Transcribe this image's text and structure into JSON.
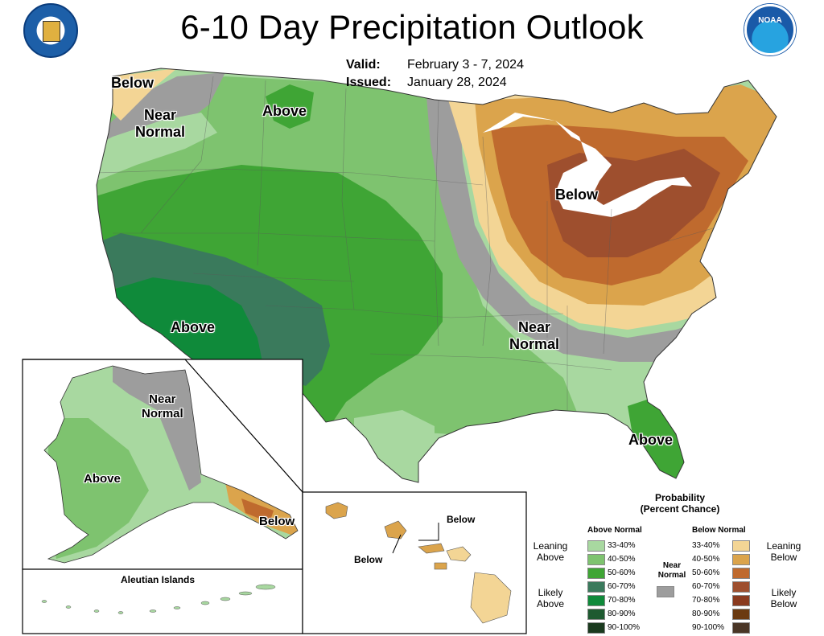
{
  "title": "6-10 Day Precipitation Outlook",
  "valid_label": "Valid:",
  "valid_value": "February 3 - 7, 2024",
  "issued_label": "Issued:",
  "issued_value": "January 28, 2024",
  "logos": {
    "left": "doc-seal-icon",
    "right": "noaa-logo-icon"
  },
  "colors": {
    "above_33_40": "#a8d8a0",
    "above_40_50": "#7ec36f",
    "above_50_60": "#3fa535",
    "above_60_70": "#3a7a5c",
    "above_70_80": "#0f8a3a",
    "above_80_90": "#1e5a30",
    "above_90_100": "#1a3a1e",
    "near_normal": "#9d9d9d",
    "below_33_40": "#f3d595",
    "below_40_50": "#dba44c",
    "below_50_60": "#bf6a2e",
    "below_60_70": "#9e4f2e",
    "below_70_80": "#8a3a1e",
    "below_80_90": "#6b3a10",
    "below_90_100": "#4a3626"
  },
  "map_labels": {
    "below_nw": "Below",
    "near_normal_nw": [
      "Near",
      "Normal"
    ],
    "above_north": "Above",
    "below_greatlakes": "Below",
    "above_southwest": "Above",
    "near_normal_southeast": [
      "Near",
      "Normal"
    ],
    "above_florida": "Above",
    "alaska_near_normal": [
      "Near",
      "Normal"
    ],
    "alaska_above": "Above",
    "alaska_below": "Below",
    "aleutian_title": "Aleutian Islands",
    "hawaii_below_1": "Below",
    "hawaii_below_2": "Below"
  },
  "legend": {
    "title": [
      "Probability",
      "(Percent Chance)"
    ],
    "above_header": "Above Normal",
    "below_header": "Below Normal",
    "near_label": [
      "Near",
      "Normal"
    ],
    "leaning_above": [
      "Leaning",
      "Above"
    ],
    "likely_above": [
      "Likely",
      "Above"
    ],
    "leaning_below": [
      "Leaning",
      "Below"
    ],
    "likely_below": [
      "Likely",
      "Below"
    ],
    "ranges": [
      "33-40%",
      "40-50%",
      "50-60%",
      "60-70%",
      "70-80%",
      "80-90%",
      "90-100%"
    ]
  }
}
